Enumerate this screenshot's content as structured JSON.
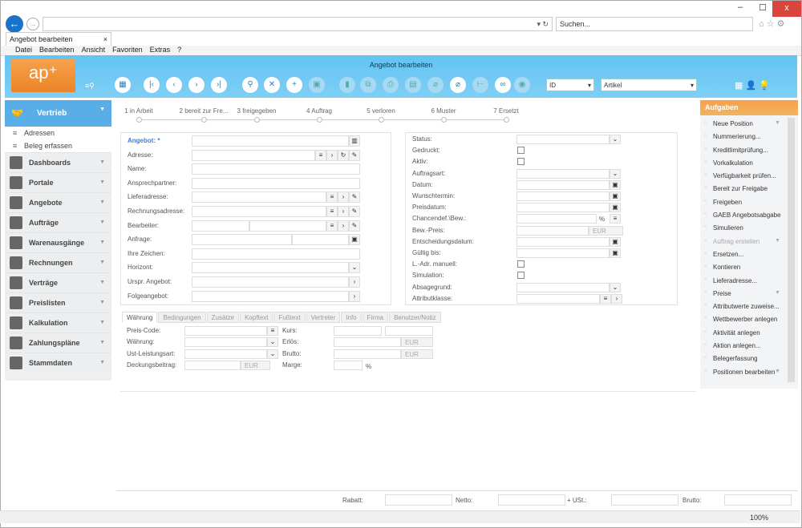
{
  "browser": {
    "search_placeholder": "Suchen...",
    "tab_title": "Angebot bearbeiten",
    "tab_close": "×",
    "menu": [
      "Datei",
      "Bearbeiten",
      "Ansicht",
      "Favoriten",
      "Extras",
      "?"
    ],
    "close": "x",
    "min": "–",
    "max": "☐",
    "zoom": "100%"
  },
  "app": {
    "title": "Angebot bearbeiten",
    "logo": "ap+",
    "sort_select": "ID",
    "type_select": "Artikel"
  },
  "toolbar": [
    "grid",
    "first",
    "prev",
    "next",
    "last",
    "search",
    "cancel",
    "add",
    "save",
    "delete",
    "copy",
    "print",
    "preview",
    "attach",
    "attach-link",
    "tree",
    "link",
    "rss"
  ],
  "sidebar": {
    "header": "Vertrieb",
    "subitems": [
      "Adressen",
      "Beleg erfassen"
    ],
    "items": [
      "Dashboards",
      "Portale",
      "Angebote",
      "Aufträge",
      "Warenausgänge",
      "Rechnungen",
      "Verträge",
      "Preislisten",
      "Kalkulation",
      "Zahlungspläne",
      "Stammdaten"
    ]
  },
  "steps": [
    "1 in Arbeit",
    "2 bereit zur Fre...",
    "3 freigegeben",
    "4 Auftrag",
    "5 verloren",
    "6 Muster",
    "7 Ersetzt"
  ],
  "left_form": [
    "Angebot: *",
    "Adresse:",
    "Name:",
    "Ansprechpartner:",
    "Lieferadresse:",
    "Rechnungsadresse:",
    "Bearbeiter:",
    "Anfrage:",
    "Ihre Zeichen:",
    "Horizont:",
    "Urspr. Angebot:",
    "Folgeangebot:"
  ],
  "right_form": [
    "Status:",
    "Gedruckt:",
    "Aktiv:",
    "Auftragsart:",
    "Datum:",
    "Wunschtermin:",
    "Preisdatum:",
    "Chancendef.\\Bew.:",
    "Bew.-Preis:",
    "Entscheidungsdatum:",
    "Gültig bis:",
    "L.-Adr. manuell:",
    "Simulation:",
    "Absagegrund:",
    "Attributklasse:"
  ],
  "currency": "EUR",
  "percent": "%",
  "tabs": [
    "Währung",
    "Bedingungen",
    "Zusätze",
    "Kopftext",
    "Fußtext",
    "Vertreter",
    "Info",
    "Firma",
    "Benutzer/Notiz"
  ],
  "waehrung": {
    "left": [
      "Preis-Code:",
      "Währung:",
      "Ust-Leistungsart:",
      "Deckungsbeitrag:"
    ],
    "right": [
      "Kurs:",
      "Erlös:",
      "Brutto:",
      "Marge:"
    ]
  },
  "tasks": {
    "header": "Aufgaben",
    "items": [
      "Neue Position",
      "Nummerierung...",
      "Kreditlimitprüfung...",
      "Vorkalkulation",
      "Verfügbarkeit prüfen...",
      "Bereit zur Freigabe",
      "Freigeben",
      "GAEB Angebotsabgabe",
      "Simulieren",
      "Auftrag erstellen",
      "Ersetzen...",
      "Kontieren",
      "Lieferadresse...",
      "Preise",
      "Attributwerte zuweise...",
      "Wettbewerber anlegen",
      "Aktivität anlegen",
      "Aktion anlegen...",
      "Belegerfassung",
      "Positionen bearbeiten"
    ]
  },
  "totals": [
    "Rabatt:",
    "Netto:",
    "+ USt.:",
    "Brutto:"
  ],
  "colors": {
    "header": "#62c3f2",
    "accent": "#5aaee8",
    "tasks": "#f7a04a"
  }
}
